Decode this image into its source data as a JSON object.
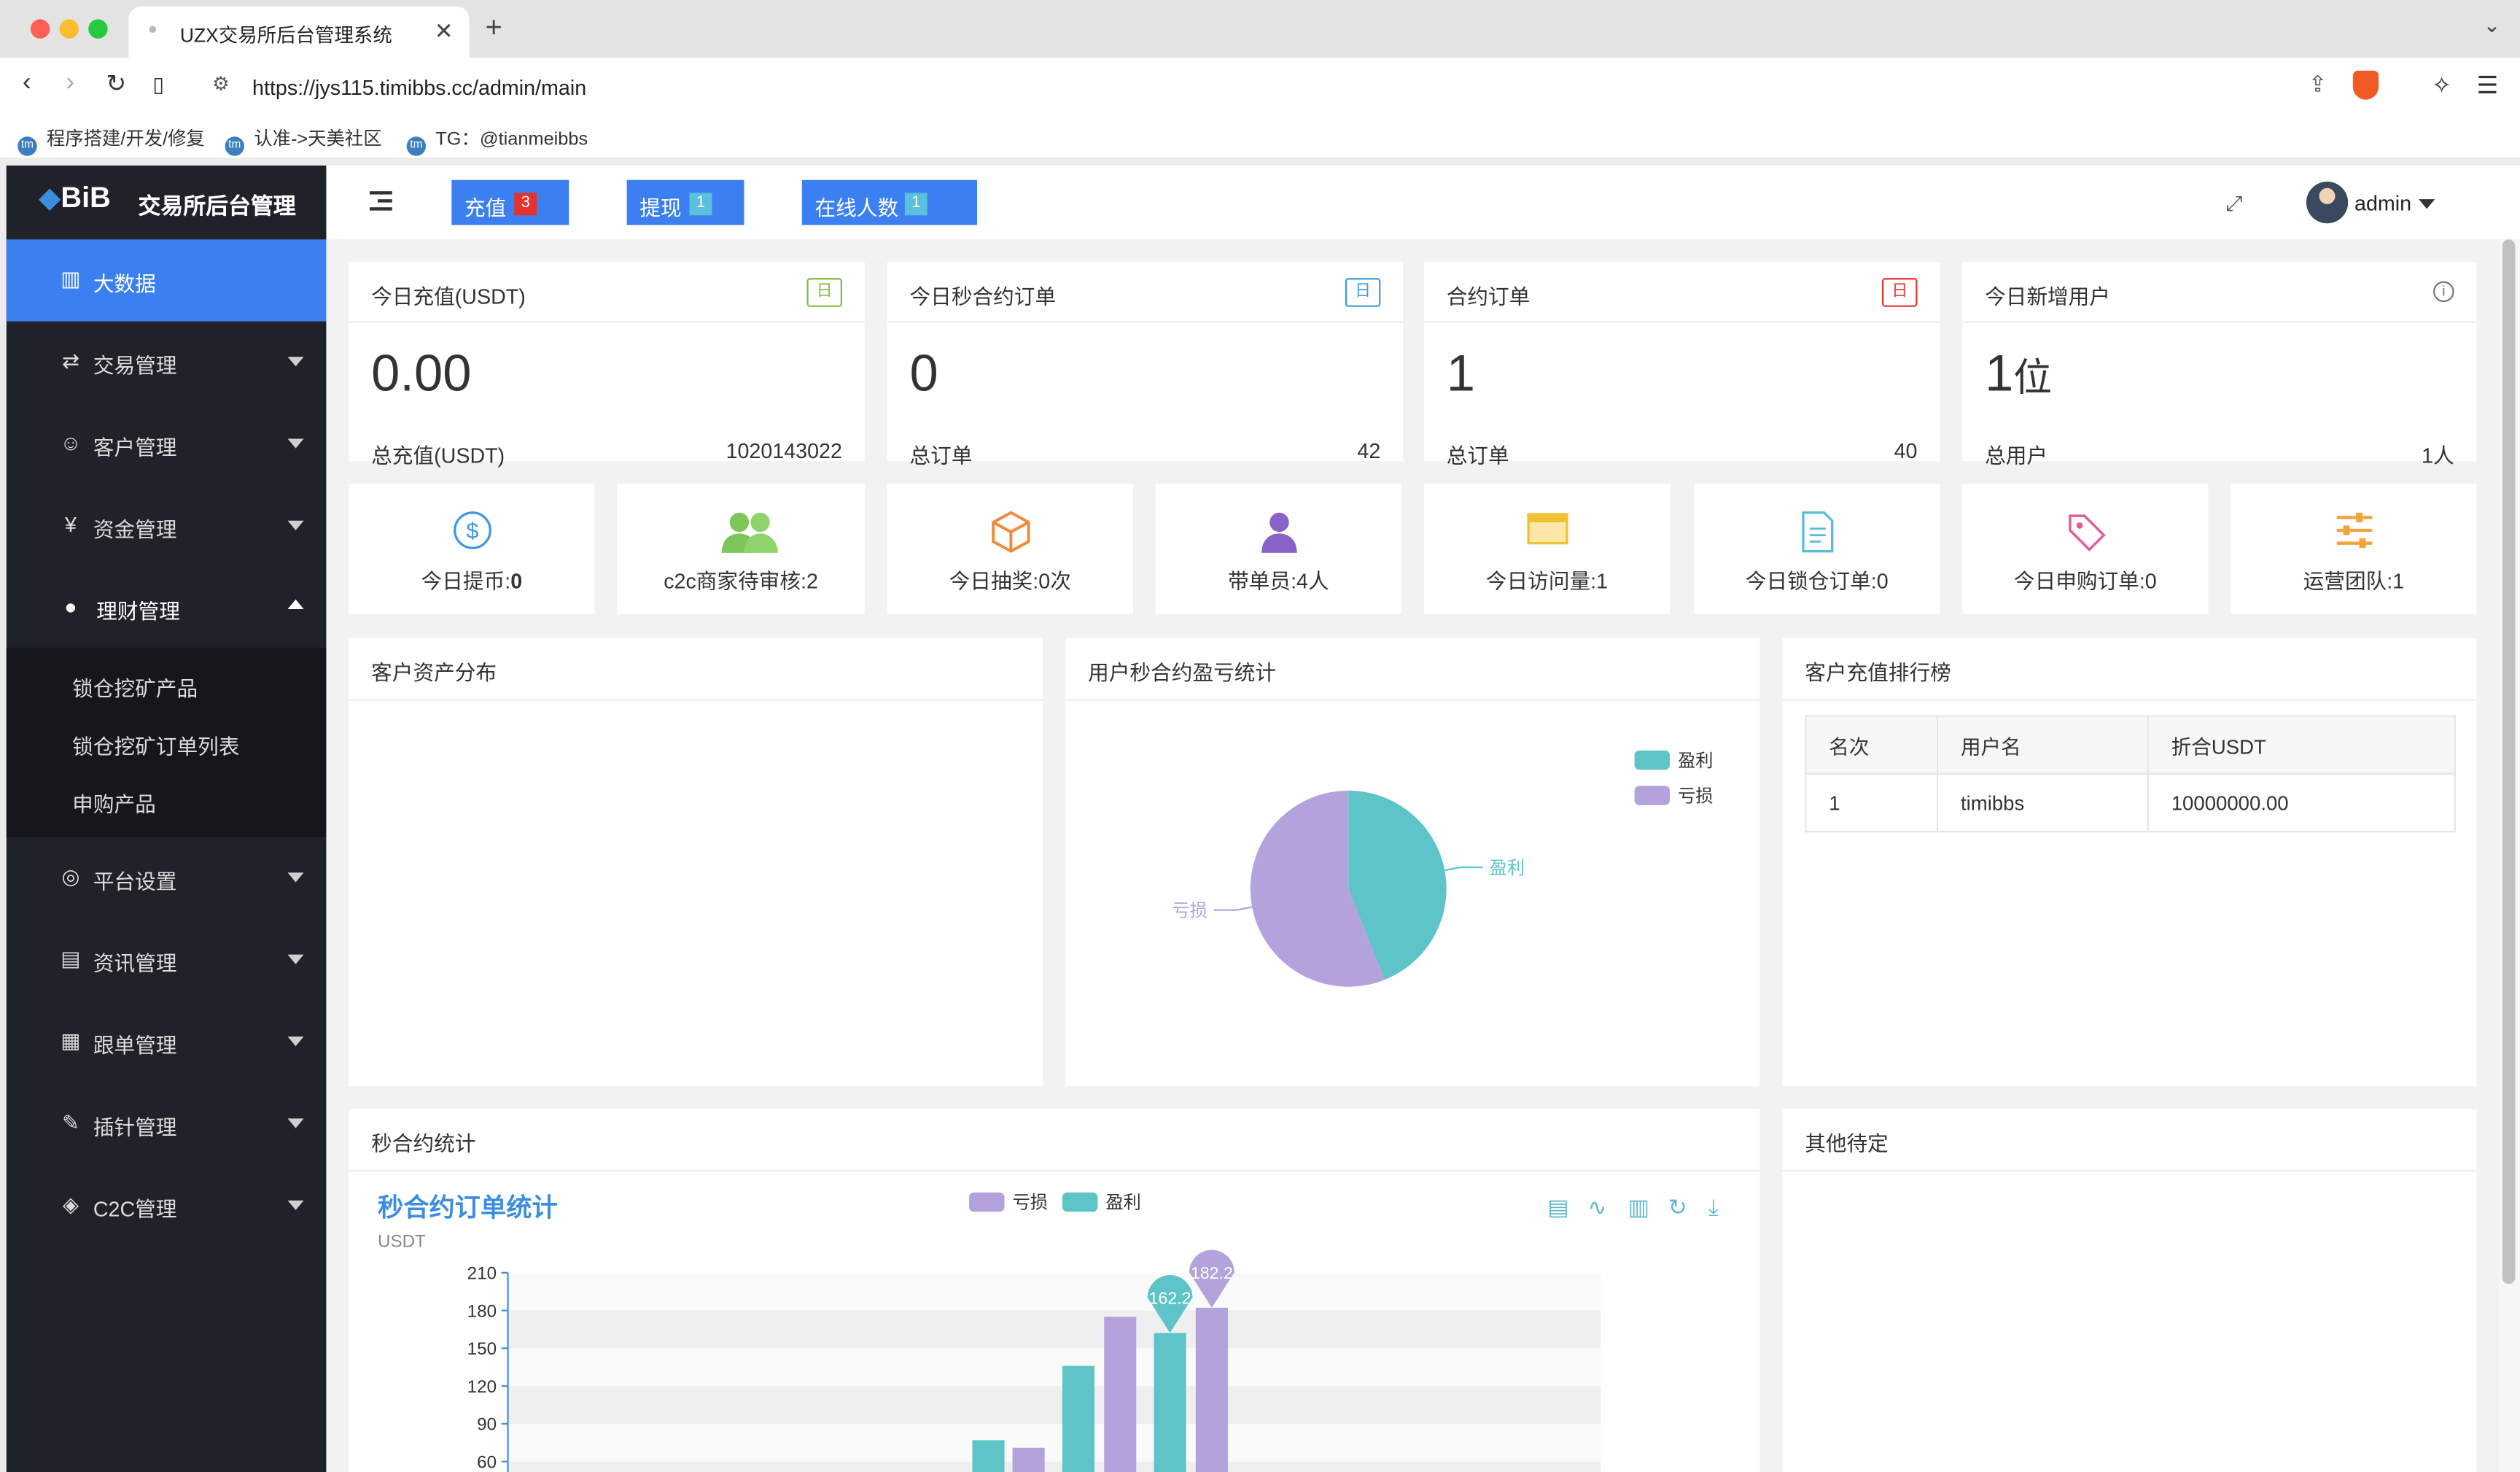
{
  "browser": {
    "tab_title": "UZX交易所后台管理系统",
    "url": "https://jys115.timibbs.cc/admin/main",
    "bookmarks": [
      "程序搭建/开发/修复",
      "认准->天美社区",
      "TG：@tianmeibbs"
    ]
  },
  "sidebar": {
    "logo_text": "BiB",
    "app_name": "交易所后台管理",
    "items": [
      {
        "label": "大数据",
        "icon": "chart-icon",
        "active": true
      },
      {
        "label": "交易管理",
        "icon": "exchange-icon"
      },
      {
        "label": "客户管理",
        "icon": "users-icon"
      },
      {
        "label": "资金管理",
        "icon": "money-bag-icon"
      },
      {
        "label": "理财管理",
        "icon": "piggy-bank-icon",
        "expanded": true
      },
      {
        "label": "平台设置",
        "icon": "settings-icon"
      },
      {
        "label": "资讯管理",
        "icon": "news-icon"
      },
      {
        "label": "跟单管理",
        "icon": "document-icon"
      },
      {
        "label": "插针管理",
        "icon": "pin-icon"
      },
      {
        "label": "C2C管理",
        "icon": "c2c-icon"
      }
    ],
    "subitems": [
      "锁仓挖矿产品",
      "锁仓挖矿订单列表",
      "申购产品"
    ]
  },
  "topbar": {
    "chips": [
      {
        "label": "充值",
        "badge": "3",
        "badge_color": "#e5322d"
      },
      {
        "label": "提现",
        "badge": "1",
        "badge_color": "#5bc0de"
      },
      {
        "label": "在线人数",
        "badge": "1",
        "badge_color": "#5bc0de"
      }
    ],
    "user": "admin"
  },
  "stats": [
    {
      "title": "今日充值(USDT)",
      "tag": "日",
      "tag_color": "#7cbf3f",
      "value": "0.00",
      "value_unit": "",
      "sub_label": "总充值(USDT)",
      "sub_value": "1020143022"
    },
    {
      "title": "今日秒合约订单",
      "tag": "日",
      "tag_color": "#3b9be0",
      "value": "0",
      "value_unit": "",
      "sub_label": "总订单",
      "sub_value": "42"
    },
    {
      "title": "合约订单",
      "tag": "日",
      "tag_color": "#e5322d",
      "value": "1",
      "value_unit": "",
      "sub_label": "总订单",
      "sub_value": "40"
    },
    {
      "title": "今日新增用户",
      "tag": "",
      "value": "1",
      "value_unit": "位",
      "sub_label": "总用户",
      "sub_value": "1人"
    }
  ],
  "mini": [
    {
      "label": "今日提币:",
      "value": "0",
      "icon": "dollar-icon",
      "color": "#3b9be0"
    },
    {
      "label": "c2c商家待审核:2",
      "value": "",
      "icon": "group-icon",
      "color": "#7cc65a"
    },
    {
      "label": "今日抽奖:0次",
      "value": "",
      "icon": "box-icon",
      "color": "#f08a3c"
    },
    {
      "label": "带单员:4人",
      "value": "",
      "icon": "person-icon",
      "color": "#8a63c8"
    },
    {
      "label": "今日访问量:1",
      "value": "",
      "icon": "window-icon",
      "color": "#f2c230"
    },
    {
      "label": "今日锁仓订单:0",
      "value": "",
      "icon": "file-icon",
      "color": "#5bbcd6"
    },
    {
      "label": "今日申购订单:0",
      "value": "",
      "icon": "tag-icon",
      "color": "#e15f9b"
    },
    {
      "label": "运营团队:1",
      "value": "",
      "icon": "sliders-icon",
      "color": "#f2a33a"
    }
  ],
  "panels": {
    "asset_title": "客户资产分布",
    "pie_title": "用户秒合约盈亏统计",
    "rank_title": "客户充值排行榜",
    "rank_headers": [
      "名次",
      "用户名",
      "折合USDT"
    ],
    "rank_rows": [
      [
        "1",
        "timibbs",
        "10000000.00"
      ]
    ],
    "bar_panel_title": "秒合约统计",
    "other_title": "其他待定"
  },
  "chart_data": [
    {
      "type": "pie",
      "title": "",
      "legend": [
        "盈利",
        "亏损"
      ],
      "legend_position": "top-right",
      "series": [
        {
          "name": "盈利",
          "value": 44,
          "color": "#5fc4c8"
        },
        {
          "name": "亏损",
          "value": 56,
          "color": "#b4a2dc"
        }
      ]
    },
    {
      "type": "bar",
      "title": "秒合约订单统计",
      "ylabel": "USDT",
      "legend": [
        "亏损",
        "盈利"
      ],
      "legend_position": "top",
      "yticks": [
        "210",
        "180",
        "150",
        "120",
        "90",
        "60"
      ],
      "ylim": [
        60,
        210
      ],
      "grid": true,
      "toolbox": [
        "data-view-icon",
        "line-chart-icon",
        "bar-chart-icon",
        "restore-icon",
        "download-icon"
      ],
      "bars": [
        {
          "series": "盈利",
          "value": 77,
          "color": "#5fc4c8"
        },
        {
          "series": "亏损",
          "value": 71,
          "color": "#b4a2dc"
        },
        {
          "series": "盈利",
          "value": 136,
          "color": "#5fc4c8"
        },
        {
          "series": "亏损",
          "value": 175,
          "color": "#b4a2dc"
        },
        {
          "series": "盈利",
          "value": 162.2,
          "color": "#5fc4c8",
          "label": "162.2"
        },
        {
          "series": "亏损",
          "value": 182.2,
          "color": "#b4a2dc",
          "label": "182.2"
        }
      ]
    }
  ]
}
